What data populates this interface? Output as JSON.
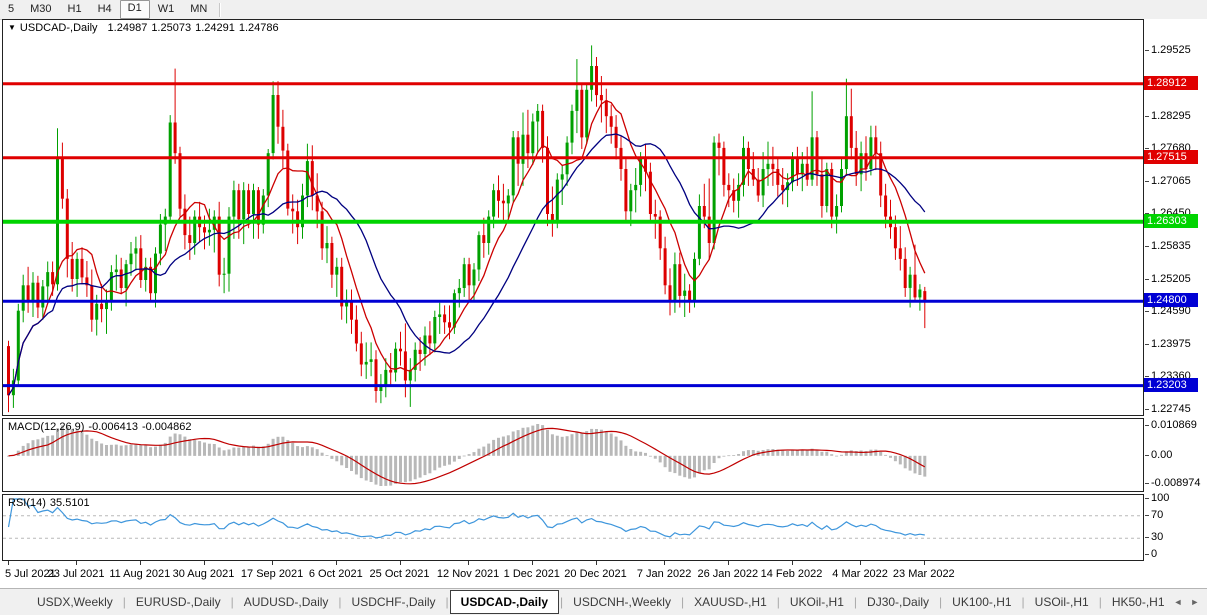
{
  "toolbar": {
    "timeframes": [
      {
        "label": "5",
        "active": false
      },
      {
        "label": "M30",
        "active": false
      },
      {
        "label": "H1",
        "active": false
      },
      {
        "label": "H4",
        "active": false
      },
      {
        "label": "D1",
        "active": true
      },
      {
        "label": "W1",
        "active": false
      },
      {
        "label": "MN",
        "active": false
      }
    ]
  },
  "chart": {
    "title": {
      "dropdown_icon": "▼",
      "symbol": "USDCAD-,Daily",
      "open": "1.24987",
      "high": "1.25073",
      "low": "1.24291",
      "close": "1.24786"
    },
    "price_axis": {
      "top_price": 1.3012,
      "bottom_price": 1.22646,
      "ticks": [
        "1.29525",
        "1.28295",
        "1.27680",
        "1.27065",
        "1.26450",
        "1.25835",
        "1.25205",
        "1.24590",
        "1.23975",
        "1.23360",
        "1.22745"
      ]
    },
    "levels": [
      {
        "label": "1.28912",
        "price": 1.28912,
        "color": "#e00000",
        "width": 3
      },
      {
        "label": "1.27515",
        "price": 1.27515,
        "color": "#e00000",
        "width": 3
      },
      {
        "label": "1.26303",
        "price": 1.26303,
        "color": "#00d400",
        "width": 4
      },
      {
        "label": "1.24800",
        "price": 1.248,
        "color": "#0000d4",
        "width": 3
      },
      {
        "label": "1.23203",
        "price": 1.23203,
        "color": "#0000d4",
        "width": 3
      }
    ],
    "colors": {
      "bull": "#00a000",
      "bear": "#dd0000"
    },
    "moving_averages": [
      {
        "period": 8,
        "color": "#cc0000"
      },
      {
        "period": 20,
        "color": "#000080"
      }
    ],
    "candles": [
      [
        1.2395,
        1.2405,
        1.227,
        1.2302
      ],
      [
        1.2302,
        1.2352,
        1.2278,
        1.233
      ],
      [
        1.233,
        1.2475,
        1.232,
        1.2462
      ],
      [
        1.2462,
        1.253,
        1.244,
        1.251
      ],
      [
        1.251,
        1.2545,
        1.2458,
        1.248
      ],
      [
        1.248,
        1.2535,
        1.245,
        1.2515
      ],
      [
        1.2515,
        1.2528,
        1.2448,
        1.2468
      ],
      [
        1.2468,
        1.252,
        1.2445,
        1.2508
      ],
      [
        1.2508,
        1.2555,
        1.248,
        1.2535
      ],
      [
        1.2535,
        1.2555,
        1.249,
        1.2512
      ],
      [
        1.2512,
        1.2807,
        1.25,
        1.275
      ],
      [
        1.275,
        1.278,
        1.2655,
        1.2674
      ],
      [
        1.2674,
        1.2692,
        1.2525,
        1.256
      ],
      [
        1.256,
        1.2592,
        1.2498,
        1.2522
      ],
      [
        1.2522,
        1.2572,
        1.2488,
        1.256
      ],
      [
        1.256,
        1.2582,
        1.2512,
        1.2525
      ],
      [
        1.2525,
        1.2556,
        1.2488,
        1.251
      ],
      [
        1.251,
        1.254,
        1.2422,
        1.2445
      ],
      [
        1.2445,
        1.2492,
        1.2415,
        1.2475
      ],
      [
        1.2475,
        1.2512,
        1.244,
        1.2465
      ],
      [
        1.2465,
        1.2502,
        1.2418,
        1.248
      ],
      [
        1.248,
        1.2548,
        1.2462,
        1.2535
      ],
      [
        1.2535,
        1.2568,
        1.25,
        1.254
      ],
      [
        1.254,
        1.2562,
        1.2493,
        1.2505
      ],
      [
        1.2505,
        1.2558,
        1.247,
        1.255
      ],
      [
        1.255,
        1.2592,
        1.2528,
        1.257
      ],
      [
        1.257,
        1.2602,
        1.2538,
        1.258
      ],
      [
        1.258,
        1.2605,
        1.2505,
        1.252
      ],
      [
        1.252,
        1.2562,
        1.2498,
        1.2545
      ],
      [
        1.2545,
        1.2562,
        1.2478,
        1.2495
      ],
      [
        1.2495,
        1.2582,
        1.2468,
        1.257
      ],
      [
        1.257,
        1.2645,
        1.2548,
        1.2625
      ],
      [
        1.2625,
        1.2655,
        1.2575,
        1.264
      ],
      [
        1.264,
        1.2832,
        1.2628,
        1.2818
      ],
      [
        1.2818,
        1.292,
        1.274,
        1.276
      ],
      [
        1.276,
        1.2772,
        1.264,
        1.2655
      ],
      [
        1.2655,
        1.2682,
        1.2578,
        1.2605
      ],
      [
        1.2605,
        1.264,
        1.2558,
        1.259
      ],
      [
        1.259,
        1.2652,
        1.2568,
        1.264
      ],
      [
        1.264,
        1.2668,
        1.2592,
        1.262
      ],
      [
        1.262,
        1.2642,
        1.2578,
        1.261
      ],
      [
        1.261,
        1.2655,
        1.2585,
        1.2615
      ],
      [
        1.2615,
        1.2652,
        1.2572,
        1.264
      ],
      [
        1.264,
        1.2668,
        1.2508,
        1.253
      ],
      [
        1.253,
        1.2562,
        1.2495,
        1.2532
      ],
      [
        1.2532,
        1.2658,
        1.2498,
        1.264
      ],
      [
        1.264,
        1.2708,
        1.2598,
        1.269
      ],
      [
        1.269,
        1.2702,
        1.2598,
        1.2635
      ],
      [
        1.2635,
        1.2705,
        1.2588,
        1.269
      ],
      [
        1.269,
        1.2702,
        1.2618,
        1.2645
      ],
      [
        1.2645,
        1.2702,
        1.2598,
        1.269
      ],
      [
        1.269,
        1.2696,
        1.2598,
        1.2625
      ],
      [
        1.2625,
        1.2692,
        1.2608,
        1.268
      ],
      [
        1.268,
        1.2768,
        1.2658,
        1.276
      ],
      [
        1.276,
        1.2896,
        1.2748,
        1.287
      ],
      [
        1.287,
        1.2896,
        1.2778,
        1.281
      ],
      [
        1.281,
        1.2842,
        1.2732,
        1.2765
      ],
      [
        1.2765,
        1.2778,
        1.2642,
        1.2655
      ],
      [
        1.2655,
        1.2682,
        1.2608,
        1.265
      ],
      [
        1.265,
        1.2672,
        1.2588,
        1.262
      ],
      [
        1.262,
        1.2702,
        1.2598,
        1.268
      ],
      [
        1.268,
        1.2778,
        1.2658,
        1.2745
      ],
      [
        1.2745,
        1.2775,
        1.2652,
        1.268
      ],
      [
        1.268,
        1.2722,
        1.2618,
        1.265
      ],
      [
        1.265,
        1.2668,
        1.2558,
        1.258
      ],
      [
        1.258,
        1.2622,
        1.2552,
        1.259
      ],
      [
        1.259,
        1.2602,
        1.2505,
        1.253
      ],
      [
        1.253,
        1.2562,
        1.2488,
        1.2545
      ],
      [
        1.2545,
        1.2562,
        1.2445,
        1.247
      ],
      [
        1.247,
        1.2502,
        1.2438,
        1.248
      ],
      [
        1.248,
        1.2502,
        1.2418,
        1.2445
      ],
      [
        1.2445,
        1.2472,
        1.2385,
        1.24
      ],
      [
        1.24,
        1.2422,
        1.2338,
        1.236
      ],
      [
        1.236,
        1.2402,
        1.2333,
        1.2365
      ],
      [
        1.2365,
        1.2402,
        1.2338,
        1.237
      ],
      [
        1.237,
        1.2387,
        1.2288,
        1.231
      ],
      [
        1.231,
        1.2342,
        1.2287,
        1.232
      ],
      [
        1.232,
        1.2372,
        1.2298,
        1.235
      ],
      [
        1.235,
        1.2382,
        1.2318,
        1.2345
      ],
      [
        1.2345,
        1.2402,
        1.2328,
        1.239
      ],
      [
        1.239,
        1.2422,
        1.2358,
        1.2385
      ],
      [
        1.2385,
        1.2438,
        1.2298,
        1.233
      ],
      [
        1.233,
        1.2372,
        1.228,
        1.235
      ],
      [
        1.235,
        1.2402,
        1.2328,
        1.2388
      ],
      [
        1.2388,
        1.2412,
        1.2348,
        1.238
      ],
      [
        1.238,
        1.2432,
        1.2358,
        1.2415
      ],
      [
        1.2415,
        1.2442,
        1.2378,
        1.24
      ],
      [
        1.24,
        1.2462,
        1.2383,
        1.245
      ],
      [
        1.245,
        1.2477,
        1.2418,
        1.2455
      ],
      [
        1.2455,
        1.2472,
        1.2418,
        1.244
      ],
      [
        1.244,
        1.2472,
        1.2408,
        1.243
      ],
      [
        1.243,
        1.2502,
        1.2418,
        1.2495
      ],
      [
        1.2495,
        1.2522,
        1.2468,
        1.2505
      ],
      [
        1.2505,
        1.2562,
        1.2488,
        1.255
      ],
      [
        1.255,
        1.2562,
        1.2478,
        1.251
      ],
      [
        1.251,
        1.2552,
        1.2478,
        1.254
      ],
      [
        1.254,
        1.2612,
        1.2518,
        1.2605
      ],
      [
        1.2605,
        1.2638,
        1.2562,
        1.259
      ],
      [
        1.259,
        1.2652,
        1.2568,
        1.264
      ],
      [
        1.264,
        1.2702,
        1.2618,
        1.269
      ],
      [
        1.269,
        1.2718,
        1.2638,
        1.267
      ],
      [
        1.267,
        1.2702,
        1.2628,
        1.2665
      ],
      [
        1.2665,
        1.2692,
        1.2638,
        1.268
      ],
      [
        1.268,
        1.2802,
        1.2668,
        1.279
      ],
      [
        1.279,
        1.2802,
        1.2698,
        1.274
      ],
      [
        1.274,
        1.2837,
        1.2698,
        1.2795
      ],
      [
        1.2795,
        1.2842,
        1.2732,
        1.276
      ],
      [
        1.276,
        1.2835,
        1.2738,
        1.282
      ],
      [
        1.282,
        1.2853,
        1.2762,
        1.284
      ],
      [
        1.284,
        1.2852,
        1.2742,
        1.277
      ],
      [
        1.277,
        1.2792,
        1.2622,
        1.2645
      ],
      [
        1.2645,
        1.2697,
        1.2602,
        1.263
      ],
      [
        1.263,
        1.2722,
        1.2618,
        1.271
      ],
      [
        1.271,
        1.2737,
        1.2662,
        1.272
      ],
      [
        1.272,
        1.2792,
        1.2698,
        1.278
      ],
      [
        1.278,
        1.2852,
        1.2758,
        1.284
      ],
      [
        1.284,
        1.2938,
        1.2798,
        1.288
      ],
      [
        1.288,
        1.2892,
        1.2768,
        1.279
      ],
      [
        1.279,
        1.2892,
        1.2778,
        1.288
      ],
      [
        1.288,
        1.2964,
        1.2858,
        1.2925
      ],
      [
        1.2925,
        1.2942,
        1.2848,
        1.287
      ],
      [
        1.287,
        1.2906,
        1.2818,
        1.286
      ],
      [
        1.286,
        1.2882,
        1.2798,
        1.283
      ],
      [
        1.283,
        1.2852,
        1.2778,
        1.281
      ],
      [
        1.281,
        1.2832,
        1.2748,
        1.277
      ],
      [
        1.277,
        1.2792,
        1.2708,
        1.273
      ],
      [
        1.273,
        1.2752,
        1.2628,
        1.265
      ],
      [
        1.265,
        1.2702,
        1.2622,
        1.269
      ],
      [
        1.269,
        1.2732,
        1.2648,
        1.27
      ],
      [
        1.27,
        1.2762,
        1.2678,
        1.275
      ],
      [
        1.275,
        1.2777,
        1.2688,
        1.2725
      ],
      [
        1.2725,
        1.2742,
        1.2628,
        1.2645
      ],
      [
        1.2645,
        1.2672,
        1.2598,
        1.264
      ],
      [
        1.264,
        1.2652,
        1.2558,
        1.258
      ],
      [
        1.258,
        1.2602,
        1.2493,
        1.251
      ],
      [
        1.251,
        1.2542,
        1.2453,
        1.248
      ],
      [
        1.248,
        1.2572,
        1.2458,
        1.255
      ],
      [
        1.255,
        1.2572,
        1.2468,
        1.249
      ],
      [
        1.249,
        1.2532,
        1.245,
        1.25
      ],
      [
        1.25,
        1.2512,
        1.2458,
        1.248
      ],
      [
        1.248,
        1.2572,
        1.2468,
        1.256
      ],
      [
        1.256,
        1.2682,
        1.2548,
        1.266
      ],
      [
        1.266,
        1.2702,
        1.2618,
        1.264
      ],
      [
        1.264,
        1.2712,
        1.2558,
        1.259
      ],
      [
        1.259,
        1.2792,
        1.2578,
        1.278
      ],
      [
        1.278,
        1.2797,
        1.2718,
        1.277
      ],
      [
        1.277,
        1.2782,
        1.2678,
        1.27
      ],
      [
        1.27,
        1.2722,
        1.2658,
        1.269
      ],
      [
        1.269,
        1.2712,
        1.2648,
        1.267
      ],
      [
        1.267,
        1.2722,
        1.2638,
        1.27
      ],
      [
        1.27,
        1.2792,
        1.2678,
        1.277
      ],
      [
        1.277,
        1.2782,
        1.2698,
        1.273
      ],
      [
        1.273,
        1.2762,
        1.2698,
        1.271
      ],
      [
        1.271,
        1.2732,
        1.2668,
        1.268
      ],
      [
        1.268,
        1.2762,
        1.2658,
        1.273
      ],
      [
        1.273,
        1.2782,
        1.2698,
        1.274
      ],
      [
        1.274,
        1.2772,
        1.2698,
        1.273
      ],
      [
        1.273,
        1.2752,
        1.2678,
        1.27
      ],
      [
        1.27,
        1.2732,
        1.2663,
        1.269
      ],
      [
        1.269,
        1.2722,
        1.2658,
        1.2705
      ],
      [
        1.2705,
        1.2762,
        1.2688,
        1.275
      ],
      [
        1.275,
        1.2772,
        1.2698,
        1.272
      ],
      [
        1.272,
        1.2762,
        1.2688,
        1.274
      ],
      [
        1.274,
        1.2772,
        1.2698,
        1.271
      ],
      [
        1.271,
        1.2877,
        1.2698,
        1.279
      ],
      [
        1.279,
        1.2802,
        1.2698,
        1.272
      ],
      [
        1.272,
        1.2752,
        1.2638,
        1.266
      ],
      [
        1.266,
        1.2742,
        1.2648,
        1.273
      ],
      [
        1.273,
        1.2742,
        1.2618,
        1.264
      ],
      [
        1.264,
        1.2682,
        1.2608,
        1.266
      ],
      [
        1.266,
        1.2752,
        1.2648,
        1.273
      ],
      [
        1.273,
        1.2901,
        1.2718,
        1.283
      ],
      [
        1.283,
        1.2882,
        1.2748,
        1.277
      ],
      [
        1.277,
        1.2802,
        1.2698,
        1.272
      ],
      [
        1.272,
        1.2782,
        1.2688,
        1.276
      ],
      [
        1.276,
        1.2792,
        1.2708,
        1.273
      ],
      [
        1.273,
        1.2812,
        1.2718,
        1.279
      ],
      [
        1.279,
        1.2812,
        1.2728,
        1.276
      ],
      [
        1.276,
        1.2782,
        1.2658,
        1.268
      ],
      [
        1.268,
        1.2702,
        1.2618,
        1.264
      ],
      [
        1.264,
        1.2672,
        1.2598,
        1.262
      ],
      [
        1.262,
        1.2642,
        1.2558,
        1.258
      ],
      [
        1.258,
        1.2622,
        1.2538,
        1.256
      ],
      [
        1.256,
        1.2582,
        1.2488,
        1.2505
      ],
      [
        1.2505,
        1.2545,
        1.2468,
        1.253
      ],
      [
        1.253,
        1.2587,
        1.2479,
        1.2487
      ],
      [
        1.2487,
        1.2512,
        1.2462,
        1.2502
      ],
      [
        1.2499,
        1.2507,
        1.2429,
        1.2479
      ]
    ]
  },
  "macd": {
    "label": "MACD(12,26,9)",
    "value_main": "-0.006413",
    "value_signal": "-0.004862",
    "axis_top": "0.010869",
    "axis_zero": "0.00",
    "axis_bottom": "-0.008974",
    "histogram_color": "#b8b8b8",
    "signal_color": "#c00000"
  },
  "rsi": {
    "label": "RSI(14)",
    "value": "35.5101",
    "axis": [
      "100",
      "70",
      "30",
      "0"
    ],
    "levels": [
      70,
      30
    ],
    "line_color": "#3e96dc"
  },
  "time_axis": {
    "labels": [
      {
        "text": "5 Jul 2021",
        "bar": 0
      },
      {
        "text": "23 Jul 2021",
        "bar": 14
      },
      {
        "text": "11 Aug 2021",
        "bar": 27
      },
      {
        "text": "30 Aug 2021",
        "bar": 40
      },
      {
        "text": "17 Sep 2021",
        "bar": 54
      },
      {
        "text": "6 Oct 2021",
        "bar": 67
      },
      {
        "text": "25 Oct 2021",
        "bar": 80
      },
      {
        "text": "12 Nov 2021",
        "bar": 94
      },
      {
        "text": "1 Dec 2021",
        "bar": 107
      },
      {
        "text": "20 Dec 2021",
        "bar": 120
      },
      {
        "text": "7 Jan 2022",
        "bar": 134
      },
      {
        "text": "26 Jan 2022",
        "bar": 147
      },
      {
        "text": "14 Feb 2022",
        "bar": 160
      },
      {
        "text": "4 Mar 2022",
        "bar": 174
      },
      {
        "text": "23 Mar 2022",
        "bar": 187
      }
    ]
  },
  "tabbar": {
    "tabs": [
      {
        "label": "USDX,Weekly",
        "active": false
      },
      {
        "label": "EURUSD-,Daily",
        "active": false
      },
      {
        "label": "AUDUSD-,Daily",
        "active": false
      },
      {
        "label": "USDCHF-,Daily",
        "active": false
      },
      {
        "label": "USDCAD-,Daily",
        "active": true
      },
      {
        "label": "USDCNH-,Weekly",
        "active": false
      },
      {
        "label": "XAUUSD-,H1",
        "active": false
      },
      {
        "label": "UKOil-,H1",
        "active": false
      },
      {
        "label": "DJ30-,Daily",
        "active": false
      },
      {
        "label": "UK100-,H1",
        "active": false
      },
      {
        "label": "USOil-,H1",
        "active": false
      },
      {
        "label": "HK50-,H1",
        "active": false
      }
    ],
    "scroll_left": "◄",
    "scroll_right": "►"
  }
}
